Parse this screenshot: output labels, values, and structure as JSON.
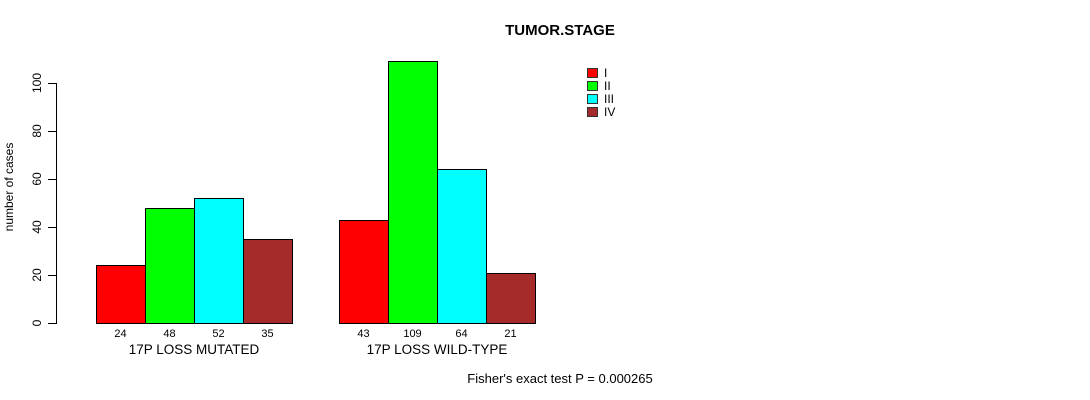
{
  "title": "TUMOR.STAGE",
  "footer_annotation": "Fisher's exact test P = 0.000265",
  "chart_data": {
    "type": "bar",
    "title": "TUMOR.STAGE",
    "xlabel": "",
    "ylabel": "number of cases",
    "ylim": [
      0,
      100
    ],
    "yticks": [
      0,
      20,
      40,
      60,
      80,
      100
    ],
    "grid": false,
    "legend_position": "top-right",
    "series": [
      {
        "name": "I",
        "color": "#FF0000",
        "values": [
          24,
          43
        ]
      },
      {
        "name": "II",
        "color": "#00FF00",
        "values": [
          48,
          109
        ]
      },
      {
        "name": "III",
        "color": "#00FFFF",
        "values": [
          52,
          64
        ]
      },
      {
        "name": "IV",
        "color": "#A52A2A",
        "values": [
          35,
          21
        ]
      }
    ],
    "groups": [
      {
        "label": "17P LOSS MUTATED",
        "values": [
          24,
          48,
          52,
          35
        ]
      },
      {
        "label": "17P LOSS WILD-TYPE",
        "values": [
          43,
          109,
          64,
          21
        ]
      }
    ],
    "bar_value_labels": [
      [
        "24",
        "48",
        "52",
        "35"
      ],
      [
        "43",
        "109",
        "64",
        "21"
      ]
    ],
    "annotation": "Fisher's exact test P = 0.000265"
  }
}
